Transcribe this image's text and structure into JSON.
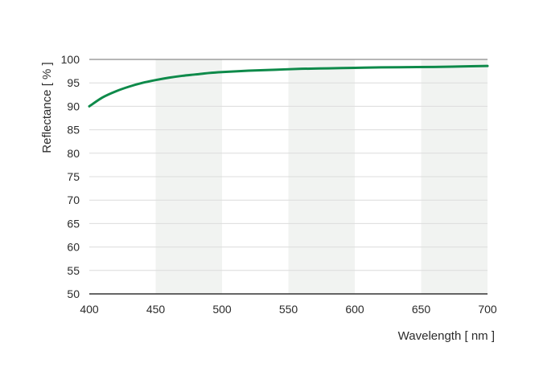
{
  "chart_data": {
    "type": "line",
    "xlabel": "Wavelength [ nm ]",
    "ylabel": "Reflectance [ % ]",
    "xlim": [
      400,
      700
    ],
    "ylim": [
      50,
      100
    ],
    "x_ticks": [
      400,
      450,
      500,
      550,
      600,
      650,
      700
    ],
    "y_ticks": [
      50,
      55,
      60,
      65,
      70,
      75,
      80,
      85,
      90,
      95,
      100
    ],
    "grid": true,
    "shaded_bands": [
      [
        450,
        500
      ],
      [
        550,
        600
      ],
      [
        650,
        700
      ]
    ],
    "series": [
      {
        "color": "#0e8a4a",
        "x": [
          400,
          410,
          420,
          430,
          440,
          450,
          460,
          470,
          480,
          490,
          500,
          520,
          540,
          560,
          580,
          600,
          620,
          640,
          660,
          680,
          700
        ],
        "y": [
          90.0,
          91.9,
          93.2,
          94.2,
          95.0,
          95.6,
          96.1,
          96.5,
          96.8,
          97.1,
          97.3,
          97.6,
          97.8,
          98.0,
          98.1,
          98.2,
          98.3,
          98.35,
          98.4,
          98.5,
          98.6
        ]
      }
    ],
    "colors": {
      "band": "#f1f3f1",
      "grid": "#dcdcdc",
      "axis": "#333333",
      "text": "#2b2b2b"
    }
  }
}
